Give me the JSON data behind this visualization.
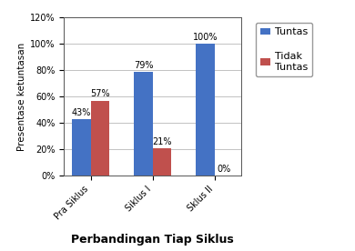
{
  "categories": [
    "Pra Siklus",
    "Siklus I",
    "Sklus II"
  ],
  "tuntas": [
    43,
    79,
    100
  ],
  "tidak_tuntas": [
    57,
    21,
    0
  ],
  "bar_color_tuntas": "#4472C4",
  "bar_color_tidak": "#C0504D",
  "ylabel": "Presentase ketuntasan",
  "xlabel": "Perbandingan Tiap Siklus",
  "legend_tuntas": "Tuntas",
  "legend_tidak": "Tidak\nTuntas",
  "ylim_max": 120,
  "yticks": [
    0,
    20,
    40,
    60,
    80,
    100,
    120
  ],
  "ytick_labels": [
    "0%",
    "20%",
    "40%",
    "60%",
    "80%",
    "100%",
    "120%"
  ],
  "background_color": "#ffffff",
  "label_fontsize": 7,
  "tick_fontsize": 7,
  "ylabel_fontsize": 7.5,
  "xlabel_fontsize": 9,
  "legend_fontsize": 8,
  "bar_width": 0.3
}
